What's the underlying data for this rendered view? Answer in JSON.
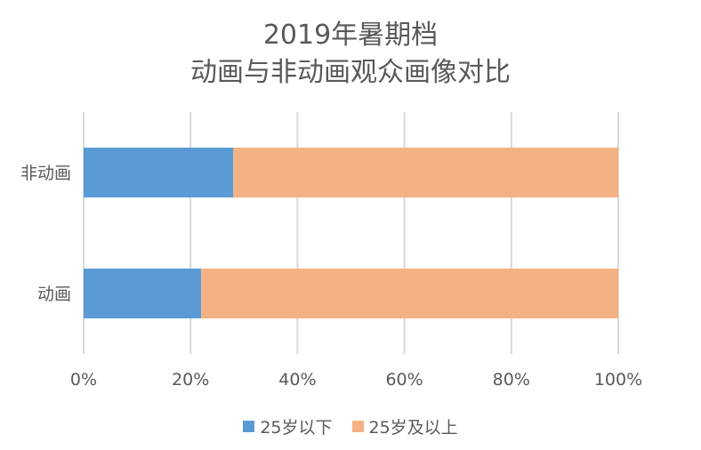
{
  "chart_data": {
    "type": "bar",
    "orientation": "horizontal",
    "stacked": true,
    "title": [
      "2019年暑期档",
      "动画与非动画观众画像对比"
    ],
    "categories": [
      "非动画",
      "动画"
    ],
    "series": [
      {
        "name": "25岁以下",
        "values": [
          28,
          22
        ],
        "color": "#5b9bd5"
      },
      {
        "name": "25岁及以上",
        "values": [
          72,
          78
        ],
        "color": "#f4b183"
      }
    ],
    "xlim": [
      0,
      100
    ],
    "x_ticks": [
      "0%",
      "20%",
      "40%",
      "60%",
      "80%",
      "100%"
    ],
    "grid": true,
    "legend_position": "bottom"
  }
}
